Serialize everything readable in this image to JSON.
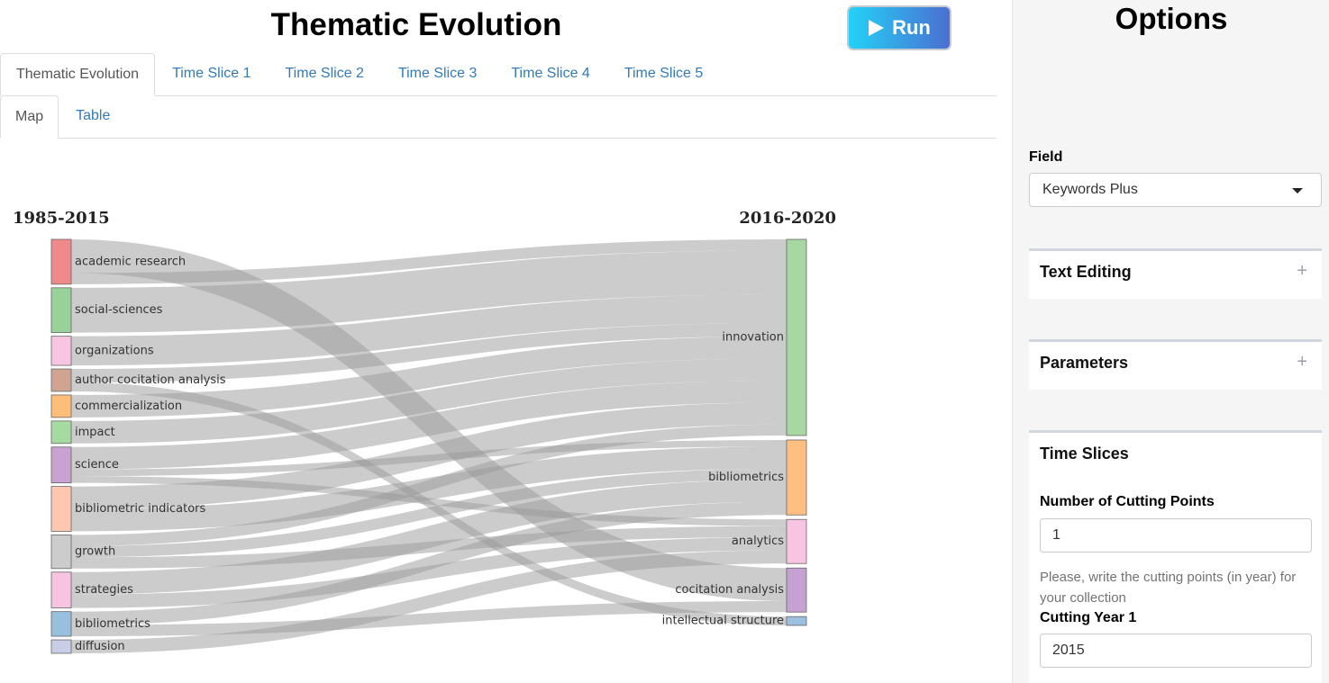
{
  "header": {
    "title": "Thematic Evolution",
    "run_label": "Run"
  },
  "tabs": [
    "Thematic Evolution",
    "Time Slice 1",
    "Time Slice 2",
    "Time Slice 3",
    "Time Slice 4",
    "Time Slice 5"
  ],
  "subtabs": [
    "Map",
    "Table"
  ],
  "chart_data": {
    "type": "sankey",
    "period_labels": [
      "1985-2015",
      "2016-2020"
    ],
    "left_nodes": [
      {
        "name": "academic research",
        "color": "#f08a8a"
      },
      {
        "name": "social-sciences",
        "color": "#98d19a"
      },
      {
        "name": "organizations",
        "color": "#f7c4e2"
      },
      {
        "name": "author cocitation analysis",
        "color": "#cfa592"
      },
      {
        "name": "commercialization",
        "color": "#ffbd7a"
      },
      {
        "name": "impact",
        "color": "#a5daa0"
      },
      {
        "name": "science",
        "color": "#c9a2d2"
      },
      {
        "name": "bibliometric indicators",
        "color": "#ffc7b0"
      },
      {
        "name": "growth",
        "color": "#cccccc"
      },
      {
        "name": "strategies",
        "color": "#f6c3e1"
      },
      {
        "name": "bibliometrics",
        "color": "#99bfde"
      },
      {
        "name": "diffusion",
        "color": "#c9cde6"
      }
    ],
    "right_nodes": [
      {
        "name": "innovation",
        "color": "#a7d8a4"
      },
      {
        "name": "bibliometrics",
        "color": "#ffbf80"
      },
      {
        "name": "analytics",
        "color": "#f7c4e2"
      },
      {
        "name": "cocitation analysis",
        "color": "#c6a2d2"
      },
      {
        "name": "intellectual structure",
        "color": "#9dbfe0"
      }
    ],
    "links": [
      {
        "source": "academic research",
        "target": "cocitation analysis",
        "value": 1.5
      },
      {
        "source": "academic research",
        "target": "innovation",
        "value": 0.5
      },
      {
        "source": "social-sciences",
        "target": "innovation",
        "value": 2.0
      },
      {
        "source": "organizations",
        "target": "innovation",
        "value": 1.3
      },
      {
        "source": "author cocitation analysis",
        "target": "innovation",
        "value": 0.6
      },
      {
        "source": "author cocitation analysis",
        "target": "intellectual structure",
        "value": 0.4
      },
      {
        "source": "commercialization",
        "target": "innovation",
        "value": 1.0
      },
      {
        "source": "impact",
        "target": "innovation",
        "value": 1.0
      },
      {
        "source": "science",
        "target": "innovation",
        "value": 1.0
      },
      {
        "source": "science",
        "target": "bibliometrics",
        "value": 0.3
      },
      {
        "source": "science",
        "target": "analytics",
        "value": 0.3
      },
      {
        "source": "bibliometric indicators",
        "target": "innovation",
        "value": 1.0
      },
      {
        "source": "bibliometric indicators",
        "target": "bibliometrics",
        "value": 1.0
      },
      {
        "source": "growth",
        "target": "innovation",
        "value": 0.5
      },
      {
        "source": "growth",
        "target": "bibliometrics",
        "value": 0.5
      },
      {
        "source": "growth",
        "target": "analytics",
        "value": 0.5
      },
      {
        "source": "strategies",
        "target": "bibliometrics",
        "value": 1.0
      },
      {
        "source": "strategies",
        "target": "analytics",
        "value": 0.6
      },
      {
        "source": "bibliometrics",
        "target": "bibliometrics",
        "value": 0.6
      },
      {
        "source": "bibliometrics",
        "target": "cocitation analysis",
        "value": 0.5
      },
      {
        "source": "diffusion",
        "target": "analytics",
        "value": 0.6
      }
    ]
  },
  "sidebar": {
    "title": "Options",
    "field_label": "Field",
    "field_value": "Keywords Plus",
    "panels": {
      "text_editing": "Text Editing",
      "parameters": "Parameters",
      "time_slices": "Time Slices"
    },
    "cutting_points_label": "Number of Cutting Points",
    "cutting_points_value": "1",
    "help_text": "Please, write the cutting points (in year) for your collection",
    "cutting_year_label": "Cutting Year 1",
    "cutting_year_value": "2015"
  }
}
